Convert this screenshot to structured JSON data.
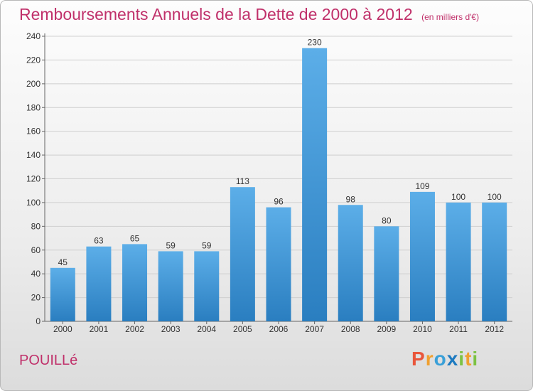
{
  "title": "Remboursements Annuels de la Dette de 2000 à 2012",
  "unit": "(en milliers d'€)",
  "commune": "POUILLé",
  "brand": {
    "letters": [
      "P",
      "r",
      "o",
      "x",
      "i",
      "t",
      "i"
    ],
    "colors": [
      "#e9563b",
      "#f0a030",
      "#3aa0d8",
      "#1d7ac0",
      "#7cc242",
      "#f0a030",
      "#7cc242"
    ]
  },
  "colors": {
    "title": "#c0306a",
    "bar_light": "#5caee8",
    "bar_dark": "#2a7ec0"
  },
  "chart_data": {
    "type": "bar",
    "categories": [
      "2000",
      "2001",
      "2002",
      "2003",
      "2004",
      "2005",
      "2006",
      "2007",
      "2008",
      "2009",
      "2010",
      "2011",
      "2012"
    ],
    "values": [
      45,
      63,
      65,
      59,
      59,
      113,
      96,
      230,
      98,
      80,
      109,
      100,
      100
    ],
    "ylim": [
      0,
      240
    ],
    "yticks": [
      0,
      20,
      40,
      60,
      80,
      100,
      120,
      140,
      160,
      180,
      200,
      220,
      240
    ],
    "grid": true,
    "xlabel": "",
    "ylabel": ""
  }
}
